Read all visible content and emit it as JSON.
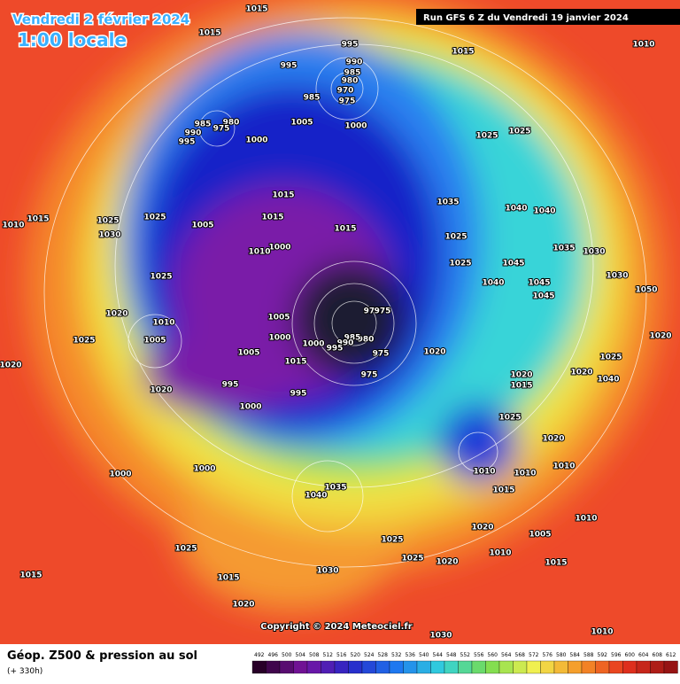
{
  "header": {
    "date": "Vendredi 2 février 2024",
    "time": "1:00 locale",
    "run": "Run GFS 6 Z du Vendredi 19 janvier 2024"
  },
  "copyright": "Copyright © 2024 Meteociel.fr",
  "footer": {
    "title": "Géop. Z500 & pression au sol",
    "lead": "(+ 330h)"
  },
  "scale": {
    "labels": [
      492,
      496,
      500,
      504,
      508,
      512,
      516,
      520,
      524,
      528,
      532,
      536,
      540,
      544,
      548,
      552,
      556,
      560,
      564,
      568,
      572,
      576,
      580,
      584,
      588,
      592,
      596,
      600,
      604,
      608,
      612
    ]
  },
  "isobars": [
    1015,
    1015,
    995,
    1015,
    1010,
    995,
    990,
    985,
    980,
    970,
    975,
    985,
    985,
    980,
    975,
    990,
    995,
    1000,
    1005,
    1000,
    1025,
    1025,
    1015,
    1015,
    1035,
    1040,
    1040,
    1015,
    1010,
    1025,
    1025,
    1030,
    1005,
    1000,
    1010,
    1015,
    1025,
    1035,
    1030,
    1025,
    1045,
    1025,
    1040,
    1045,
    1030,
    1045,
    1050,
    1020,
    1005,
    1010,
    975,
    975,
    1005,
    1000,
    980,
    985,
    990,
    995,
    1000,
    1025,
    1020,
    975,
    1005,
    1020,
    1015,
    1025,
    1020,
    1040,
    1020,
    1015,
    1020,
    995,
    995,
    975,
    1000,
    1025,
    1020,
    1010,
    1000,
    1000,
    1010,
    1010,
    1035,
    1040,
    1015,
    1010,
    1020,
    1005,
    1025,
    1025,
    1010,
    1030,
    1015,
    1025,
    1020,
    1015,
    1015,
    1020,
    1030,
    1010,
    1020
  ]
}
